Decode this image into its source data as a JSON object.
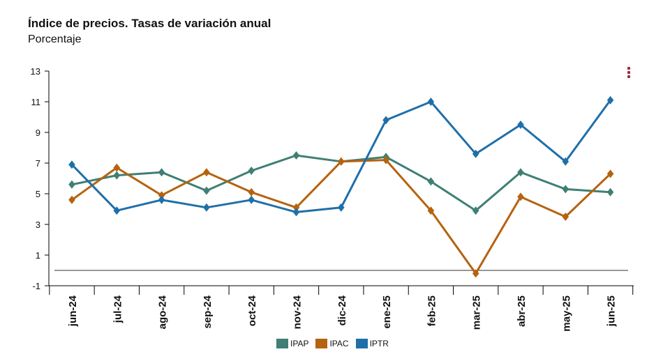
{
  "header": {
    "title": "Índice de precios. Tasas de variación anual",
    "subtitle": "Porcentaje"
  },
  "chart_data": {
    "type": "line",
    "categories": [
      "jun-24",
      "jul-24",
      "ago-24",
      "sep-24",
      "oct-24",
      "nov-24",
      "dic-24",
      "ene-25",
      "feb-25",
      "mar-25",
      "abr-25",
      "may-25",
      "jun-25"
    ],
    "y_ticks": [
      -1,
      1,
      3,
      5,
      7,
      9,
      11,
      13
    ],
    "ylim": [
      -1,
      13
    ],
    "grid": false,
    "legend_position": "bottom",
    "series": [
      {
        "name": "IPAP",
        "color": "#3f7f74",
        "values": [
          5.6,
          6.2,
          6.4,
          5.2,
          6.5,
          7.5,
          7.1,
          7.4,
          5.8,
          3.9,
          6.4,
          5.3,
          5.1
        ]
      },
      {
        "name": "IPAC",
        "color": "#b5630f",
        "values": [
          4.6,
          6.7,
          4.9,
          6.4,
          5.1,
          4.1,
          7.1,
          7.2,
          3.9,
          -0.2,
          4.8,
          3.5,
          6.3
        ]
      },
      {
        "name": "IPTR",
        "color": "#1f6fa8",
        "values": [
          6.9,
          3.9,
          4.6,
          4.1,
          4.6,
          3.8,
          4.1,
          9.8,
          11.0,
          7.6,
          9.5,
          7.1,
          11.1
        ]
      }
    ],
    "reference_line": 0
  },
  "menu": {
    "icon": "more-vertical-icon"
  }
}
